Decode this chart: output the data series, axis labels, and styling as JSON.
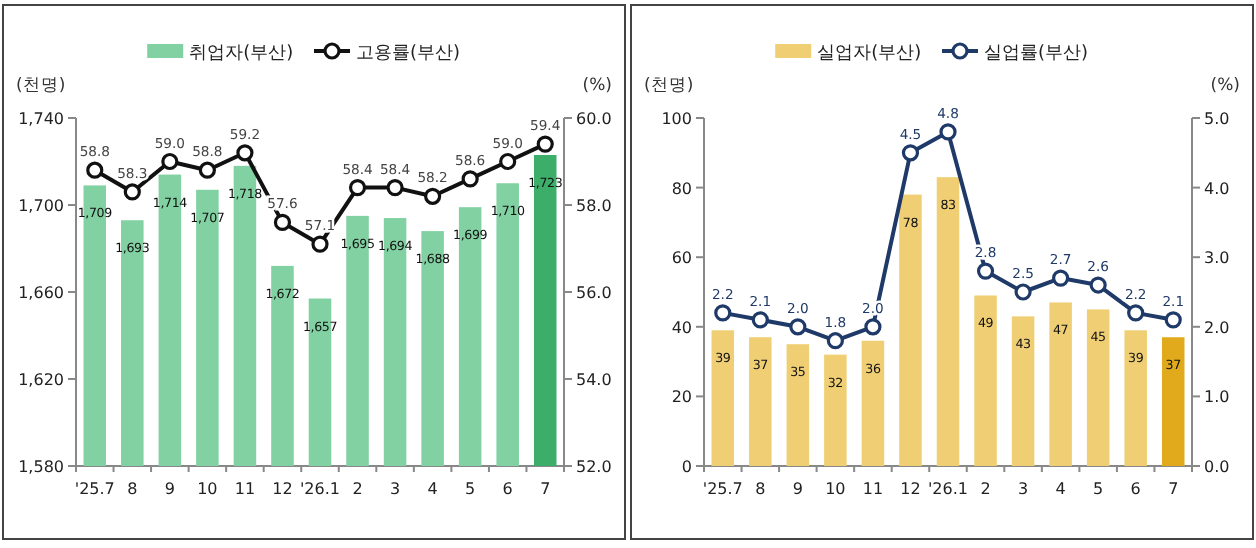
{
  "chart_data": [
    {
      "type": "bar",
      "categories": [
        "'25.7",
        "8",
        "9",
        "10",
        "11",
        "12",
        "'26.1",
        "2",
        "3",
        "4",
        "5",
        "6",
        "7"
      ],
      "ylabel": "(천명)",
      "y2label": "(%)",
      "legend": "top",
      "marker": "circle",
      "ylim": [
        1580,
        1740
      ],
      "yticks": [
        {
          "value": 1580,
          "label": "1,580"
        },
        {
          "value": 1620,
          "label": "1,620"
        },
        {
          "value": 1660,
          "label": "1,660"
        },
        {
          "value": 1700,
          "label": "1,700"
        },
        {
          "value": 1740,
          "label": "1,740"
        }
      ],
      "y2lim": [
        52,
        60
      ],
      "y2ticks": [
        {
          "value": 52,
          "label": "52.0"
        },
        {
          "value": 54,
          "label": "54.0"
        },
        {
          "value": 56,
          "label": "56.0"
        },
        {
          "value": 58,
          "label": "58.0"
        },
        {
          "value": 60,
          "label": "60.0"
        }
      ],
      "series": [
        {
          "name": "취업자(부산)",
          "color": "#82d1a2",
          "colors": [
            "#82d1a2",
            "#82d1a2",
            "#82d1a2",
            "#82d1a2",
            "#82d1a2",
            "#82d1a2",
            "#82d1a2",
            "#82d1a2",
            "#82d1a2",
            "#82d1a2",
            "#82d1a2",
            "#82d1a2",
            "#3dae6a"
          ],
          "values": [
            1709,
            1693,
            1714,
            1707,
            1718,
            1672,
            1657,
            1695,
            1694,
            1688,
            1699,
            1710,
            1723
          ],
          "value_labels": [
            "1,709",
            "1,693",
            "1,714",
            "1,707",
            "1,718",
            "1,672",
            "1,657",
            "1,695",
            "1,694",
            "1,688",
            "1,699",
            "1,710",
            "1,723"
          ]
        },
        {
          "name": "고용률(부산)",
          "type": "line",
          "axis": "y2",
          "color": "#111111",
          "values": [
            58.8,
            58.3,
            59.0,
            58.8,
            59.2,
            57.6,
            57.1,
            58.4,
            58.4,
            58.2,
            58.6,
            59.0,
            59.4
          ],
          "value_labels": [
            "58.8",
            "58.3",
            "59.0",
            "58.8",
            "59.2",
            "57.6",
            "57.1",
            "58.4",
            "58.4",
            "58.2",
            "58.6",
            "59.0",
            "59.4"
          ]
        }
      ]
    },
    {
      "type": "bar",
      "categories": [
        "'25.7",
        "8",
        "9",
        "10",
        "11",
        "12",
        "'26.1",
        "2",
        "3",
        "4",
        "5",
        "6",
        "7"
      ],
      "ylabel": "(천명)",
      "y2label": "(%)",
      "legend": "top",
      "marker": "circle",
      "ylim": [
        0,
        100
      ],
      "yticks": [
        0,
        20,
        40,
        60,
        80,
        100
      ],
      "y2lim": [
        0,
        5
      ],
      "y2ticks": [
        {
          "value": 0,
          "label": "0.0"
        },
        {
          "value": 1,
          "label": "1.0"
        },
        {
          "value": 2,
          "label": "2.0"
        },
        {
          "value": 3,
          "label": "3.0"
        },
        {
          "value": 4,
          "label": "4.0"
        },
        {
          "value": 5,
          "label": "5.0"
        }
      ],
      "series": [
        {
          "name": "실업자(부산)",
          "color": "#f0cf74",
          "colors": [
            "#f0cf74",
            "#f0cf74",
            "#f0cf74",
            "#f0cf74",
            "#f0cf74",
            "#f0cf74",
            "#f0cf74",
            "#f0cf74",
            "#f0cf74",
            "#f0cf74",
            "#f0cf74",
            "#f0cf74",
            "#e0aa1c"
          ],
          "values": [
            39,
            37,
            35,
            32,
            36,
            78,
            83,
            49,
            43,
            47,
            45,
            39,
            37
          ],
          "value_labels": [
            "39",
            "37",
            "35",
            "32",
            "36",
            "78",
            "83",
            "49",
            "43",
            "47",
            "45",
            "39",
            "37"
          ]
        },
        {
          "name": "실업률(부산)",
          "type": "line",
          "axis": "y2",
          "color": "#1f3a68",
          "values": [
            2.2,
            2.1,
            2.0,
            1.8,
            2.0,
            4.5,
            4.8,
            2.8,
            2.5,
            2.7,
            2.6,
            2.2,
            2.1
          ],
          "value_labels": [
            "2.2",
            "2.1",
            "2.0",
            "1.8",
            "2.0",
            "4.5",
            "4.8",
            "2.8",
            "2.5",
            "2.7",
            "2.6",
            "2.2",
            "2.1"
          ]
        }
      ]
    }
  ]
}
